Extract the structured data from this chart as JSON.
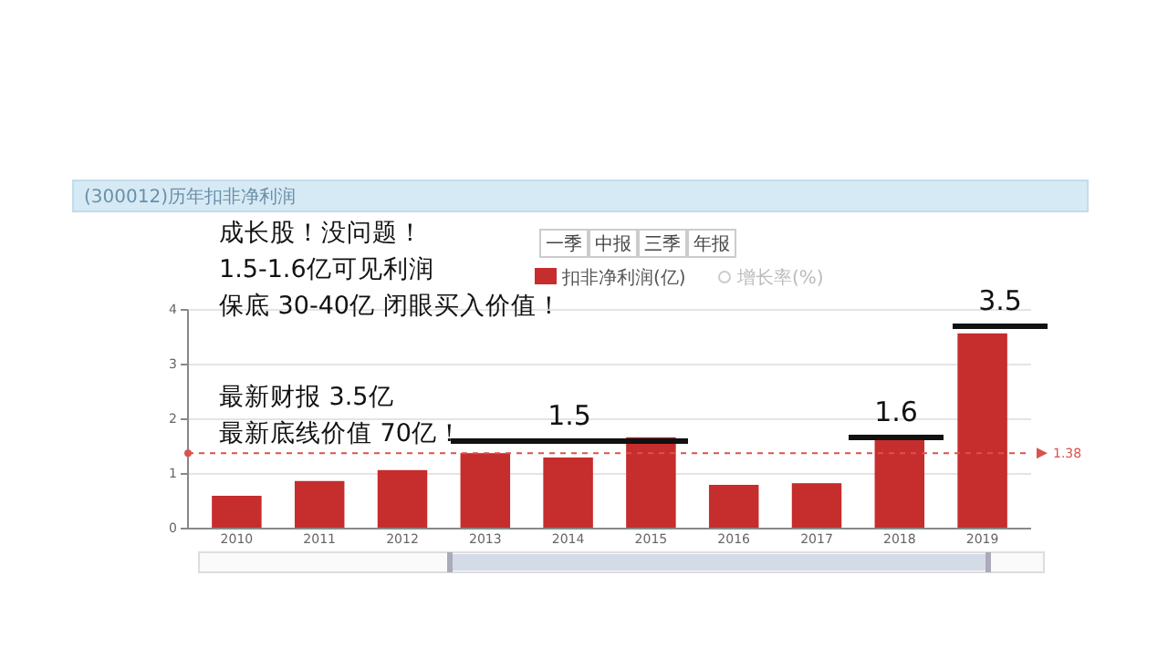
{
  "chart_data": {
    "type": "bar",
    "title": "(300012)历年扣非净利润",
    "categories": [
      "2010",
      "2011",
      "2012",
      "2013",
      "2014",
      "2015",
      "2016",
      "2017",
      "2018",
      "2019"
    ],
    "series": [
      {
        "name": "扣非净利润(亿)",
        "color": "#c62d2d",
        "values": [
          0.6,
          0.87,
          1.07,
          1.38,
          1.3,
          1.67,
          0.8,
          0.83,
          1.63,
          3.57
        ]
      }
    ],
    "ylim": [
      0,
      4
    ],
    "yticks": [
      0,
      1,
      2,
      3,
      4
    ],
    "grid": "y",
    "legend": "top",
    "ref_lines": [
      {
        "axis": "y",
        "value": 1.38,
        "label": "1.38",
        "color": "#d9534f",
        "line_style": "dashed"
      }
    ],
    "annotations": [
      "成长股！没问题！",
      "1.5-1.6亿可见利润",
      "保底 30-40亿 闭眼买入价值！",
      "最新财报 3.5亿",
      "最新底线价值 70亿！",
      "一季",
      "中报",
      "三季",
      "年报",
      "增长率(%)",
      "1.5",
      "1.6",
      "3.5"
    ]
  }
}
